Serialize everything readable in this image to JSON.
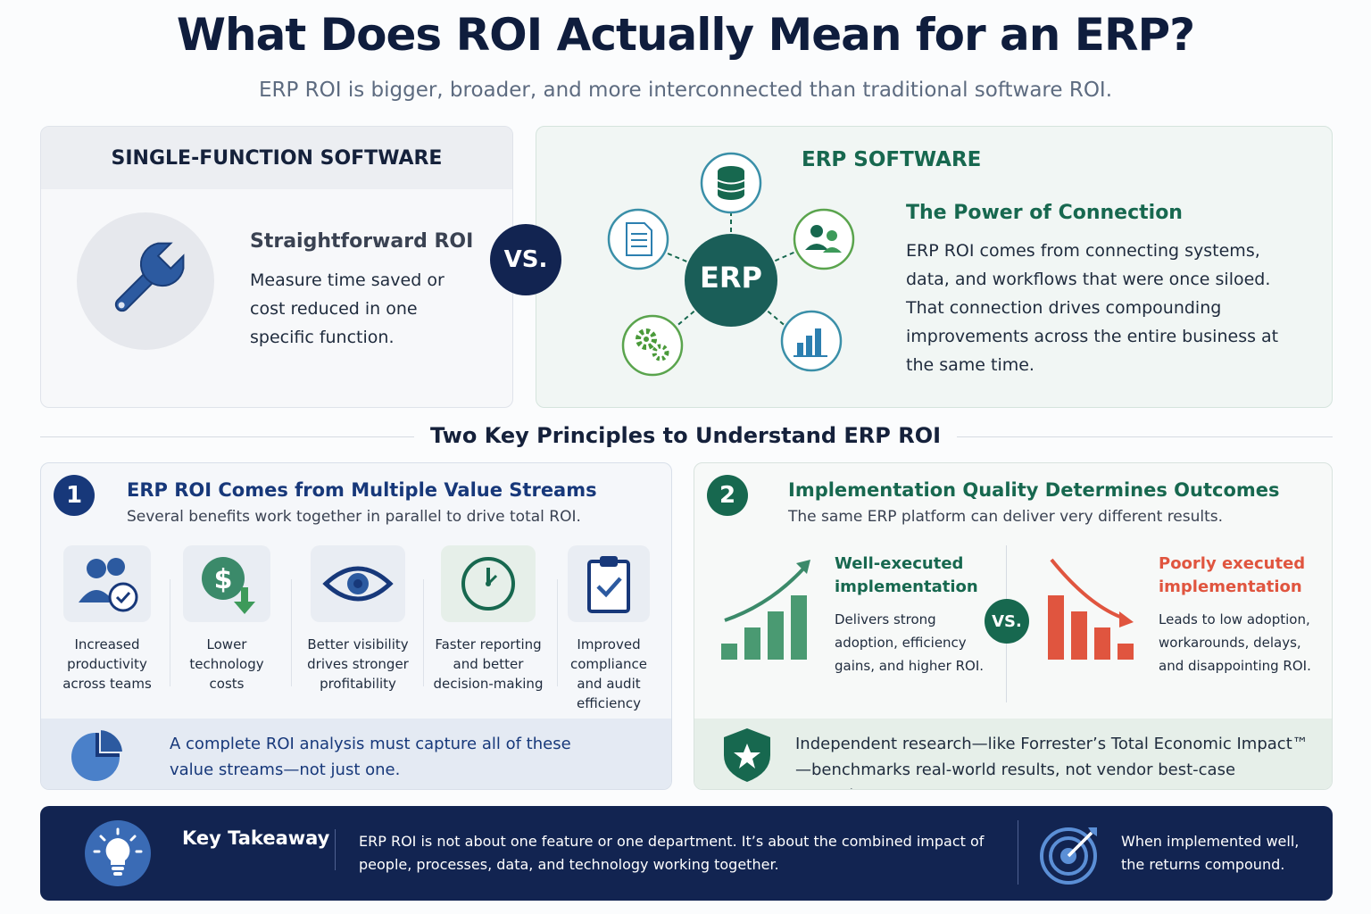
{
  "header": {
    "title": "What Does ROI Actually Mean for an ERP?",
    "subtitle": "ERP ROI is bigger, broader, and more interconnected than traditional software ROI."
  },
  "single_function": {
    "heading": "SINGLE-FUNCTION SOFTWARE",
    "title": "Straightforward ROI",
    "text": "Measure time saved or cost reduced in one specific function.",
    "icon": "wrench-icon"
  },
  "versus_label": "VS.",
  "erp_software": {
    "heading": "ERP SOFTWARE",
    "hub_label": "ERP",
    "title": "The Power of Connection",
    "text": "ERP ROI comes from connecting systems, data, and workflows that were once siloed. That connection drives compounding improvements across the entire business at the same time.",
    "node_icons": [
      "database-icon",
      "users-icon",
      "bar-chart-icon",
      "gears-icon",
      "document-icon"
    ]
  },
  "section_title": "Two Key Principles to Understand ERP ROI",
  "principle1": {
    "number": "1",
    "title": "ERP ROI Comes from Multiple Value Streams",
    "subtitle": "Several benefits work together in parallel to drive total ROI.",
    "streams": [
      {
        "label": "Increased productivity across teams",
        "icon": "team-check-icon"
      },
      {
        "label": "Lower technology costs",
        "icon": "dollar-down-icon"
      },
      {
        "label": "Better visibility drives stronger profitability",
        "icon": "eye-icon"
      },
      {
        "label": "Faster reporting and better decision-making",
        "icon": "clock-icon"
      },
      {
        "label": "Improved compliance and audit efficiency",
        "icon": "clipboard-check-icon"
      }
    ],
    "footer": "A complete ROI analysis must capture all of these value streams—not just one.",
    "footer_icon": "pie-chart-icon"
  },
  "principle2": {
    "number": "2",
    "title": "Implementation Quality Determines Outcomes",
    "subtitle": "The same ERP platform can deliver very different results.",
    "good": {
      "title": "Well-executed implementation",
      "text": "Delivers strong adoption, efficiency gains, and higher ROI.",
      "values": [
        1,
        2,
        3,
        4
      ]
    },
    "vs": "VS.",
    "bad": {
      "title": "Poorly executed implementation",
      "text": "Leads to low adoption, workarounds, delays, and disappointing ROI.",
      "values": [
        4,
        3,
        2,
        1
      ]
    },
    "footer": "Independent research—like Forrester’s Total Economic Impact™—benchmarks real-world results, not vendor best-case scenarios.",
    "footer_icon": "shield-star-icon"
  },
  "takeaway": {
    "title": "Key Takeaway",
    "text": "ERP ROI is not about one feature or one department. It’s about the combined impact of people, processes, data, and technology working together.",
    "right_text": "When implemented well, the returns compound.",
    "icon": "lightbulb-icon",
    "right_icon": "target-icon"
  },
  "colors": {
    "navy": "#122451",
    "green": "#17684f",
    "blue": "#2c5aa0",
    "red": "#e0553f"
  }
}
